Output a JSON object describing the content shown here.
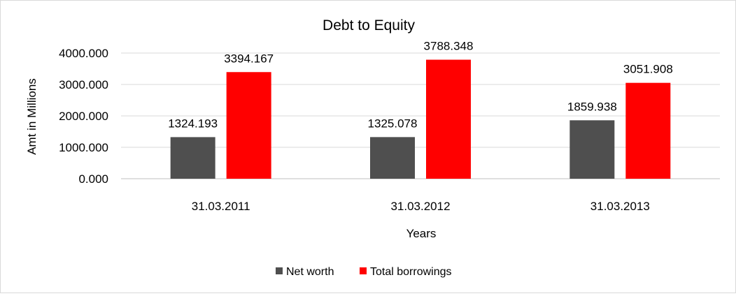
{
  "chart_data": {
    "type": "bar",
    "title": "Debt to Equity",
    "xlabel": "Years",
    "ylabel": "Amt in Millions",
    "categories": [
      "31.03.2011",
      "31.03.2012",
      "31.03.2013"
    ],
    "series": [
      {
        "name": "Net worth",
        "color": "#4f4f4f",
        "values": [
          1324.193,
          1325.078,
          1859.938
        ],
        "labels": [
          "1324.193",
          "1325.078",
          "1859.938"
        ]
      },
      {
        "name": "Total borrowings",
        "color": "#ff0000",
        "values": [
          3394.167,
          3788.348,
          3051.908
        ],
        "labels": [
          "3394.167",
          "3788.348",
          "3051.908"
        ]
      }
    ],
    "ylim": [
      0,
      4000
    ],
    "yticks": [
      "0.000",
      "1000.000",
      "2000.000",
      "3000.000",
      "4000.000"
    ],
    "grid": true,
    "legend_position": "bottom"
  }
}
